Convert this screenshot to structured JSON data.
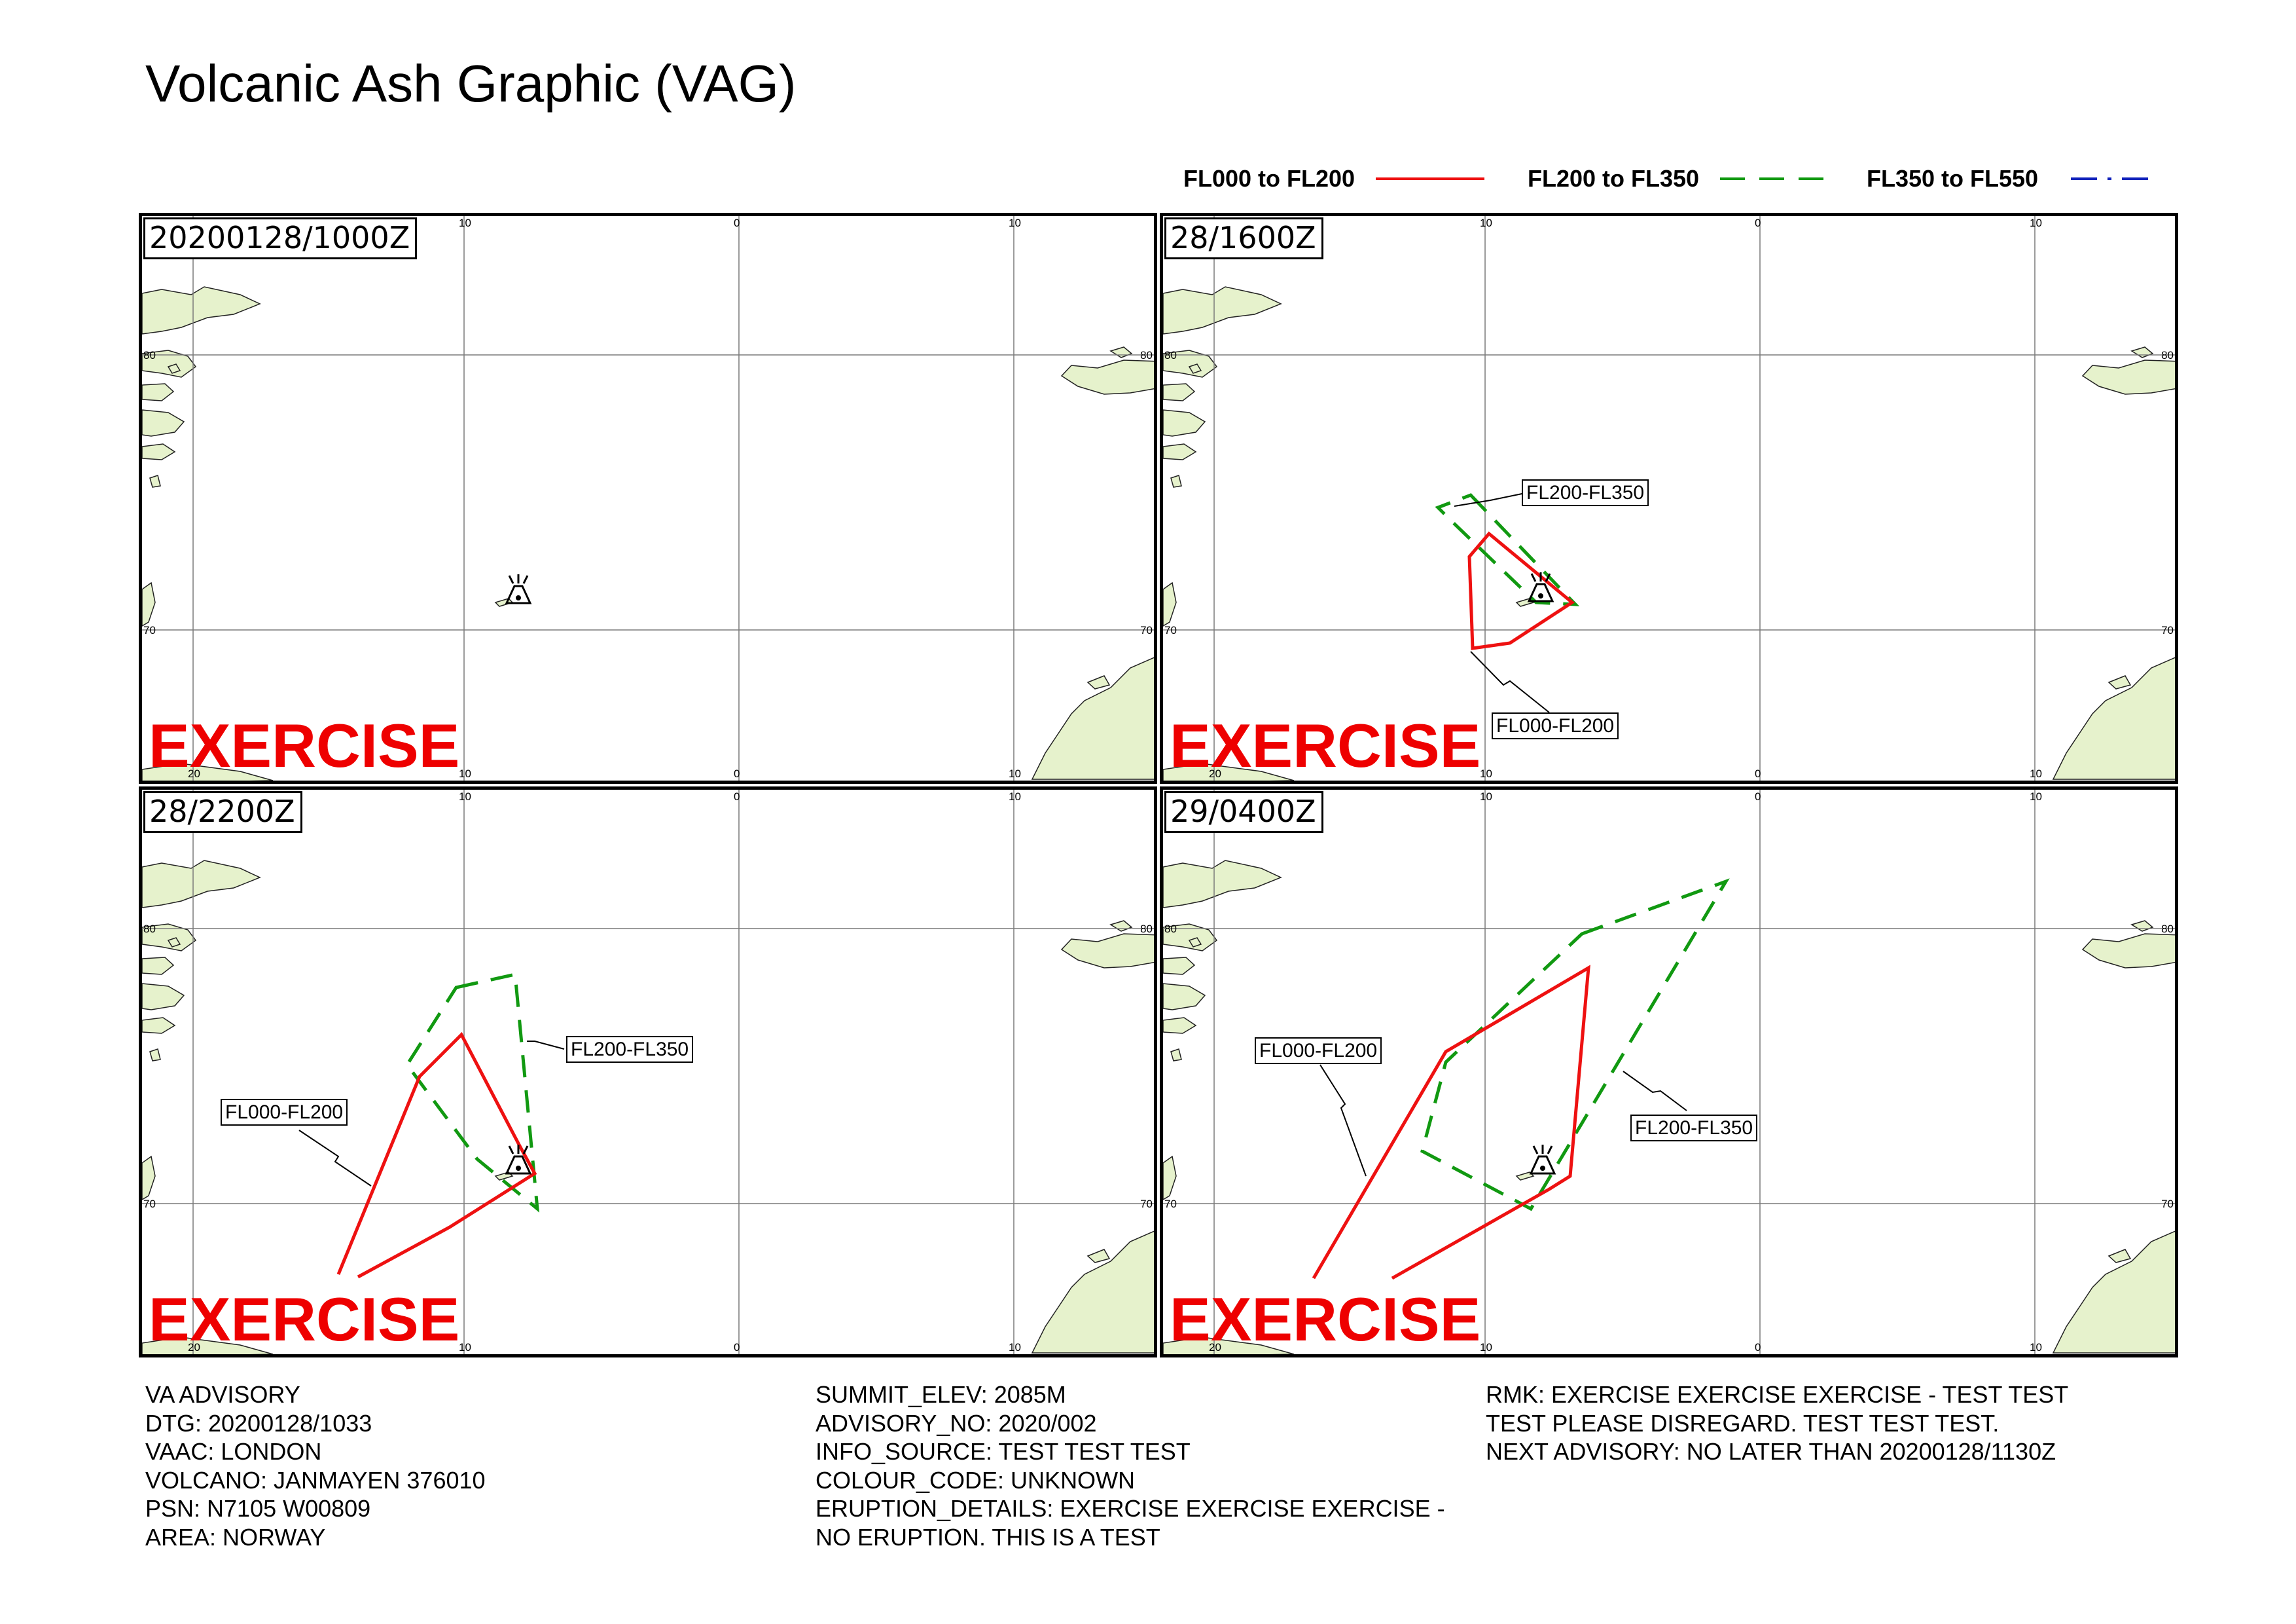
{
  "title": "Volcanic Ash Graphic (VAG)",
  "legend": [
    {
      "label": "FL000 to FL200",
      "color": "#ee1111",
      "style": "solid"
    },
    {
      "label": "FL200 to FL350",
      "color": "#119911",
      "style": "dashed"
    },
    {
      "label": "FL350 to FL550",
      "color": "#1122bb",
      "style": "dashdot"
    }
  ],
  "panels": [
    {
      "timestamp": "20200128/1000Z",
      "watermark": "EXERCISE",
      "callouts": []
    },
    {
      "timestamp": "28/1600Z",
      "watermark": "EXERCISE",
      "callouts": [
        "FL200-FL350",
        "FL000-FL200"
      ]
    },
    {
      "timestamp": "28/2200Z",
      "watermark": "EXERCISE",
      "callouts": [
        "FL200-FL350",
        "FL000-FL200"
      ]
    },
    {
      "timestamp": "29/0400Z",
      "watermark": "EXERCISE",
      "callouts": [
        "FL000-FL200",
        "FL200-FL350"
      ]
    }
  ],
  "map_ticks": {
    "top": [
      "10",
      "0",
      "10"
    ],
    "bottom": [
      "20",
      "10",
      "0",
      "10"
    ],
    "left": [
      "80",
      "70"
    ],
    "right": [
      "80",
      "70"
    ]
  },
  "map_layers": {
    "land_color": "#e6f2cc",
    "grid_color": "#7a7a7a",
    "volcano_icon": "volcano-icon"
  },
  "advisory": {
    "col1": [
      "VA ADVISORY",
      "DTG: 20200128/1033",
      "VAAC: LONDON",
      "VOLCANO: JANMAYEN 376010",
      "PSN: N7105 W00809",
      "AREA: NORWAY"
    ],
    "col2": [
      "SUMMIT_ELEV: 2085M",
      "ADVISORY_NO: 2020/002",
      "INFO_SOURCE: TEST TEST TEST",
      "COLOUR_CODE: UNKNOWN",
      "ERUPTION_DETAILS: EXERCISE EXERCISE EXERCISE -",
      "NO ERUPTION. THIS IS A TEST"
    ],
    "col3": [
      "RMK: EXERCISE EXERCISE EXERCISE - TEST TEST",
      "TEST PLEASE DISREGARD. TEST TEST TEST.",
      "NEXT ADVISORY: NO LATER THAN 20200128/1130Z"
    ]
  }
}
